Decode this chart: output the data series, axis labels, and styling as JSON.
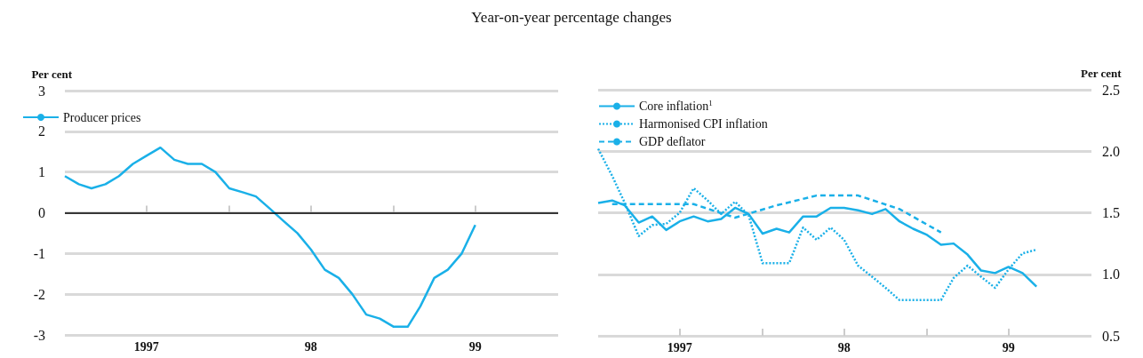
{
  "chart_data": [
    {
      "type": "line",
      "title": "Year-on-year percentage changes",
      "ylabel": "Per cent",
      "x": [
        "1997-01",
        "1997-02",
        "1997-03",
        "1997-04",
        "1997-05",
        "1997-06",
        "1997-07",
        "1997-08",
        "1997-09",
        "1997-10",
        "1997-11",
        "1997-12",
        "1998-01",
        "1998-02",
        "1998-03",
        "1998-04",
        "1998-05",
        "1998-06",
        "1998-07",
        "1998-08",
        "1998-09",
        "1998-10",
        "1998-11",
        "1998-12",
        "1999-01",
        "1999-02",
        "1999-03",
        "1999-04",
        "1999-05",
        "1999-06",
        "1999-07"
      ],
      "series": [
        {
          "name": "Producer prices",
          "color": "#1ab0e8",
          "line_style": "solid",
          "values": [
            0.9,
            0.7,
            0.6,
            0.7,
            0.9,
            1.2,
            1.4,
            1.6,
            1.3,
            1.2,
            1.2,
            1.0,
            0.6,
            0.5,
            0.4,
            0.1,
            -0.2,
            -0.5,
            -0.9,
            -1.4,
            -1.6,
            -2.0,
            -2.5,
            -2.6,
            -2.8,
            -2.8,
            -2.3,
            -1.6,
            -1.4,
            -1.0,
            -0.3
          ]
        }
      ],
      "xlim": [
        "1997-01",
        "2000-01"
      ],
      "xticks": [
        {
          "value": "1997-07",
          "label": "1997"
        },
        {
          "value": "1998-01",
          "label": null
        },
        {
          "value": "1998-07",
          "label": "98"
        },
        {
          "value": "1999-01",
          "label": null
        },
        {
          "value": "1999-07",
          "label": "99"
        }
      ],
      "ylim": [
        -3,
        3
      ],
      "yticks": [
        -3,
        -2,
        -1,
        0,
        1,
        2,
        3
      ],
      "ref_lines": [
        {
          "axis": "y",
          "value": 0,
          "color": "#000000"
        }
      ],
      "grid": "y",
      "legend": "top left",
      "marker": "none"
    },
    {
      "type": "line",
      "ylabel": "Per cent",
      "series": [
        {
          "name": "Core inflation$^{1}$",
          "color": "#1ab0e8",
          "line_style": "solid",
          "x": [
            "1997-01",
            "1997-02",
            "1997-03",
            "1997-04",
            "1997-05",
            "1997-06",
            "1997-07",
            "1997-08",
            "1997-09",
            "1997-10",
            "1997-11",
            "1997-12",
            "1998-01",
            "1998-02",
            "1998-03",
            "1998-04",
            "1998-05",
            "1998-06",
            "1998-07",
            "1998-08",
            "1998-09",
            "1998-10",
            "1998-11",
            "1998-12",
            "1999-01",
            "1999-02",
            "1999-03",
            "1999-04",
            "1999-05",
            "1999-06",
            "1999-07",
            "1999-08",
            "1999-09"
          ],
          "values": [
            1.58,
            1.6,
            1.56,
            1.42,
            1.47,
            1.36,
            1.43,
            1.47,
            1.43,
            1.45,
            1.54,
            1.49,
            1.33,
            1.37,
            1.34,
            1.47,
            1.47,
            1.54,
            1.54,
            1.52,
            1.49,
            1.53,
            1.43,
            1.37,
            1.32,
            1.24,
            1.25,
            1.16,
            1.03,
            1.01,
            1.06,
            1.01,
            0.9
          ]
        },
        {
          "name": "Harmonised CPI inflation",
          "color": "#1ab0e8",
          "line_style": "dotted",
          "x": [
            "1997-01",
            "1997-02",
            "1997-03",
            "1997-04",
            "1997-05",
            "1997-06",
            "1997-07",
            "1997-08",
            "1997-09",
            "1997-10",
            "1997-11",
            "1997-12",
            "1998-01",
            "1998-02",
            "1998-03",
            "1998-04",
            "1998-05",
            "1998-06",
            "1998-07",
            "1998-08",
            "1998-09",
            "1998-10",
            "1998-11",
            "1998-12",
            "1999-01",
            "1999-02",
            "1999-03",
            "1999-04",
            "1999-05",
            "1999-06",
            "1999-07",
            "1999-08",
            "1999-09"
          ],
          "values": [
            2.02,
            1.8,
            1.58,
            1.31,
            1.4,
            1.41,
            1.5,
            1.7,
            1.6,
            1.49,
            1.59,
            1.48,
            1.09,
            1.09,
            1.09,
            1.38,
            1.28,
            1.38,
            1.28,
            1.07,
            0.98,
            0.89,
            0.79,
            0.79,
            0.79,
            0.79,
            0.97,
            1.07,
            0.98,
            0.89,
            1.04,
            1.17,
            1.2
          ]
        },
        {
          "name": "GDP deflator",
          "color": "#1ab0e8",
          "line_style": "dashed",
          "x": [
            "1997-02",
            "1997-05",
            "1997-08",
            "1997-11",
            "1998-02",
            "1998-05",
            "1998-08",
            "1998-11",
            "1999-02"
          ],
          "values": [
            1.57,
            1.57,
            1.57,
            1.46,
            1.56,
            1.64,
            1.64,
            1.53,
            1.34
          ]
        }
      ],
      "xlim": [
        "1997-01",
        "2000-01"
      ],
      "xticks": [
        {
          "value": "1997-07",
          "label": "1997"
        },
        {
          "value": "1998-01",
          "label": null
        },
        {
          "value": "1998-07",
          "label": "98"
        },
        {
          "value": "1999-01",
          "label": null
        },
        {
          "value": "1999-07",
          "label": "99"
        }
      ],
      "ylim": [
        0.5,
        2.5
      ],
      "yticks": [
        {
          "value": 0.5,
          "label": "0.5"
        },
        {
          "value": 1,
          "label": "1.0"
        },
        {
          "value": 1.5,
          "label": "1.5"
        },
        {
          "value": 2,
          "label": "2.0"
        },
        {
          "value": 2.5,
          "label": "2.5"
        }
      ],
      "grid": "y",
      "legend": "top left",
      "marker": "none"
    }
  ]
}
